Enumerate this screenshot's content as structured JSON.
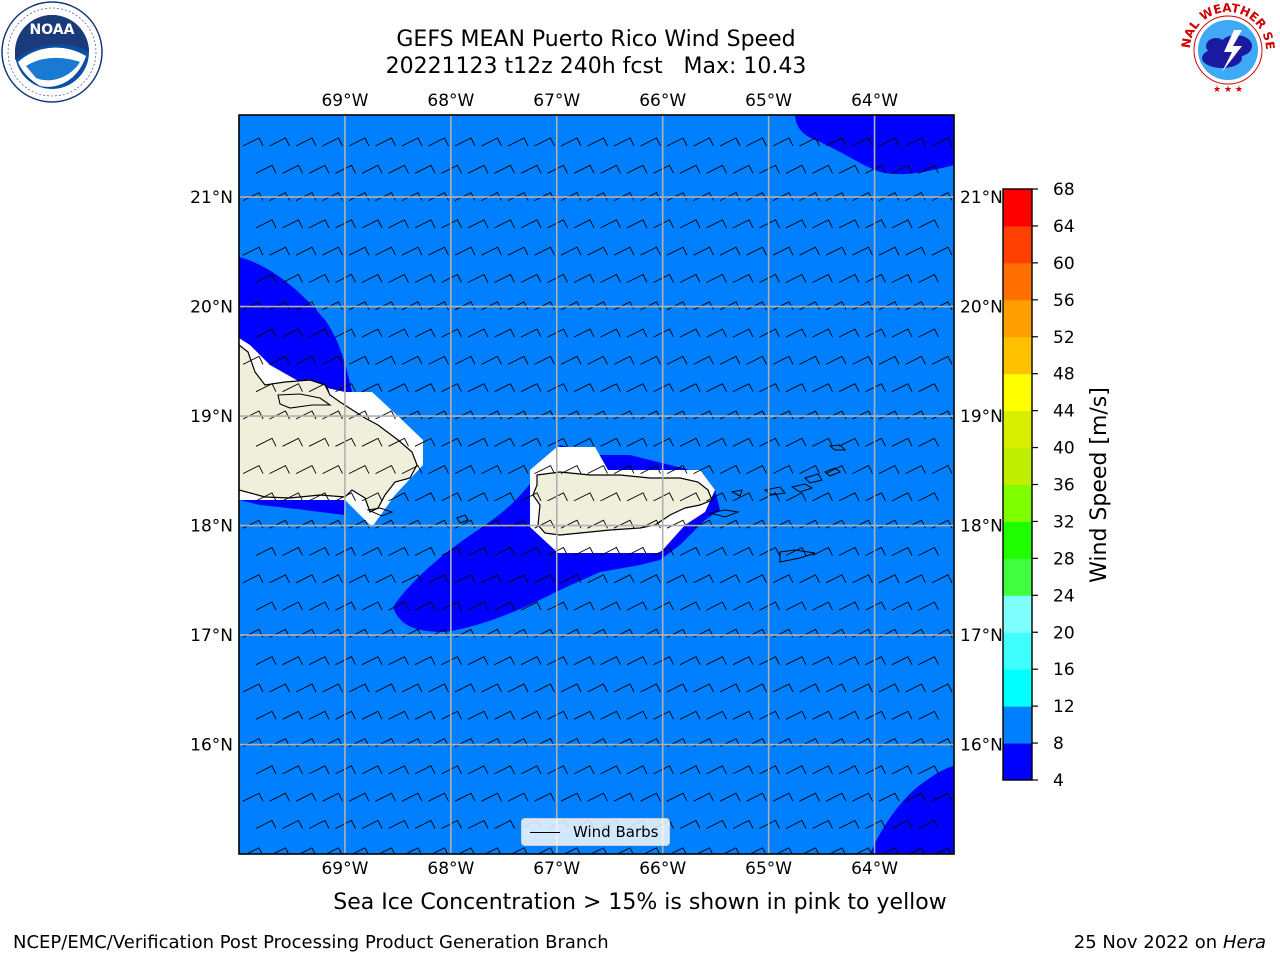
{
  "header": {
    "title_line1": "GEFS MEAN Puerto Rico Wind Speed",
    "title_line2": "20221123 t12z 240h fcst   Max: 10.43"
  },
  "logos": {
    "left": {
      "name": "noaa-logo",
      "text": "NOAA",
      "ring_text": "NATIONAL OCEANIC AND ATMOSPHERIC ADMINISTRATION • U.S. DEPARTMENT OF COMMERCE"
    },
    "right": {
      "name": "nws-logo",
      "ring_text": "NATIONAL WEATHER SERVICE"
    }
  },
  "map": {
    "lon_labels": [
      "69°W",
      "68°W",
      "67°W",
      "66°W",
      "65°W",
      "64°W"
    ],
    "lat_labels": [
      "21°N",
      "20°N",
      "19°N",
      "18°N",
      "17°N",
      "16°N"
    ],
    "lon_values": [
      -69,
      -68,
      -67,
      -66,
      -65,
      -64
    ],
    "lat_values": [
      21,
      20,
      19,
      18,
      17,
      16
    ],
    "extent": {
      "lon": [
        -70,
        -63.25
      ],
      "lat": [
        15,
        21.75
      ]
    },
    "background_fill_range": "8-12",
    "colors": {
      "band_4_8": "#0000ff",
      "band_8_12": "#0080ff",
      "land": "#efefdc",
      "grid": "#b0b0b0"
    },
    "legend": {
      "label": "Wind Barbs"
    }
  },
  "colorbar": {
    "label": "Wind Speed [m/s]",
    "ticks": [
      "68",
      "64",
      "60",
      "56",
      "52",
      "48",
      "44",
      "40",
      "36",
      "32",
      "28",
      "24",
      "20",
      "16",
      "12",
      "8",
      "4"
    ],
    "bands": [
      {
        "range": "4-8",
        "color": "#0000ff"
      },
      {
        "range": "8-12",
        "color": "#0080ff"
      },
      {
        "range": "12-16",
        "color": "#00ffff"
      },
      {
        "range": "16-20",
        "color": "#40ffff"
      },
      {
        "range": "20-24",
        "color": "#80ffff"
      },
      {
        "range": "24-28",
        "color": "#40ff40"
      },
      {
        "range": "28-32",
        "color": "#20ff00"
      },
      {
        "range": "32-36",
        "color": "#80ff00"
      },
      {
        "range": "36-40",
        "color": "#c0f000"
      },
      {
        "range": "40-44",
        "color": "#d8f000"
      },
      {
        "range": "44-48",
        "color": "#ffff00"
      },
      {
        "range": "48-52",
        "color": "#ffc000"
      },
      {
        "range": "52-56",
        "color": "#ffa000"
      },
      {
        "range": "56-60",
        "color": "#ff7000"
      },
      {
        "range": "60-64",
        "color": "#ff4000"
      },
      {
        "range": "64-68",
        "color": "#ff0000"
      }
    ]
  },
  "caption": "Sea Ice Concentration > 15% is shown in pink to yellow",
  "footer": {
    "left": "NCEP/EMC/Verification Post Processing Product Generation Branch",
    "right_date": "25 Nov 2022 on",
    "right_host": "Hera"
  }
}
